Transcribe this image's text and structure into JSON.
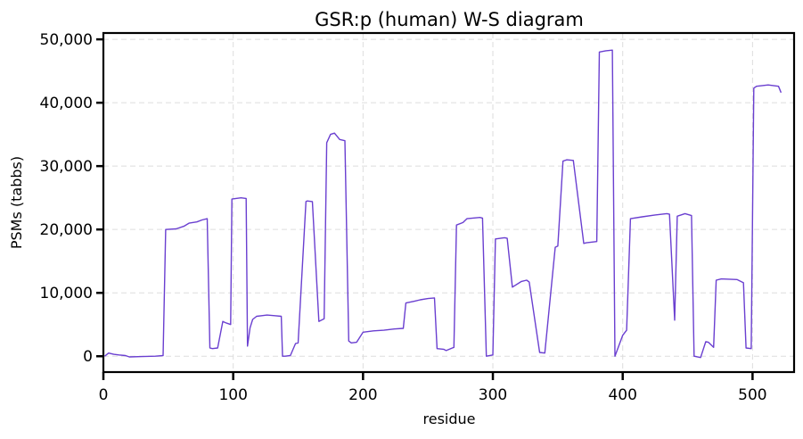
{
  "chart_data": {
    "type": "line",
    "title": "GSR:p (human) W-S diagram",
    "xlabel": "residue",
    "ylabel": "PSMs (tabbs)",
    "xlim": [
      0,
      532
    ],
    "ylim": [
      -2500,
      51000
    ],
    "xticks": [
      0,
      100,
      200,
      300,
      400,
      500
    ],
    "xtick_labels": [
      "0",
      "100",
      "200",
      "300",
      "400",
      "500"
    ],
    "yticks": [
      0,
      10000,
      20000,
      30000,
      40000,
      50000
    ],
    "ytick_labels": [
      "0",
      "10,000",
      "20,000",
      "30,000",
      "40,000",
      "50,000"
    ],
    "grid": true,
    "series": [
      {
        "color": "#6a3fd0",
        "x": [
          1,
          4,
          8,
          12,
          17,
          20,
          30,
          40,
          46,
          48,
          56,
          62,
          66,
          72,
          76,
          80,
          82,
          84,
          88,
          92,
          94,
          98,
          99,
          106,
          110,
          111,
          113,
          115,
          118,
          122,
          126,
          132,
          137,
          138,
          140,
          144,
          148,
          150,
          156,
          157,
          161,
          166,
          168,
          170,
          172,
          175,
          178,
          182,
          186,
          189,
          191,
          195,
          200,
          208,
          216,
          224,
          231,
          233,
          240,
          244,
          250,
          255,
          257,
          262,
          264,
          270,
          272,
          277,
          280,
          290,
          292,
          295,
          300,
          302,
          309,
          311,
          315,
          322,
          326,
          328,
          336,
          340,
          348,
          350,
          354,
          357,
          362,
          370,
          372,
          380,
          382,
          387,
          392,
          394,
          400,
          403,
          406,
          415,
          425,
          434,
          436,
          440,
          442,
          448,
          453,
          455,
          460,
          464,
          466,
          470,
          472,
          476,
          488,
          493,
          495,
          499,
          501,
          503,
          512,
          520,
          522
        ],
        "y": [
          0,
          500,
          300,
          200,
          100,
          -100,
          -50,
          0,
          100,
          20000,
          20100,
          20500,
          21000,
          21200,
          21500,
          21700,
          1300,
          1200,
          1300,
          5500,
          5300,
          5000,
          24800,
          25000,
          24900,
          1600,
          4500,
          5800,
          6300,
          6400,
          6500,
          6400,
          6300,
          0,
          0,
          100,
          2000,
          2100,
          24400,
          24500,
          24400,
          5500,
          5700,
          5900,
          33700,
          35000,
          35200,
          34200,
          34000,
          2400,
          2100,
          2200,
          3800,
          4000,
          4100,
          4300,
          4400,
          8400,
          8700,
          8900,
          9100,
          9200,
          1200,
          1100,
          900,
          1400,
          20700,
          21100,
          21700,
          21900,
          21800,
          0,
          200,
          18500,
          18700,
          18600,
          10900,
          11800,
          12000,
          11700,
          600,
          500,
          17200,
          17400,
          30800,
          31000,
          30900,
          17800,
          17900,
          18100,
          48000,
          48200,
          48300,
          0,
          3300,
          4100,
          21700,
          22000,
          22300,
          22500,
          22400,
          5700,
          22100,
          22500,
          22200,
          0,
          -200,
          2300,
          2200,
          1400,
          12000,
          12200,
          12100,
          11600,
          1300,
          1200,
          42300,
          42600,
          42800,
          42600,
          41600
        ]
      }
    ]
  }
}
